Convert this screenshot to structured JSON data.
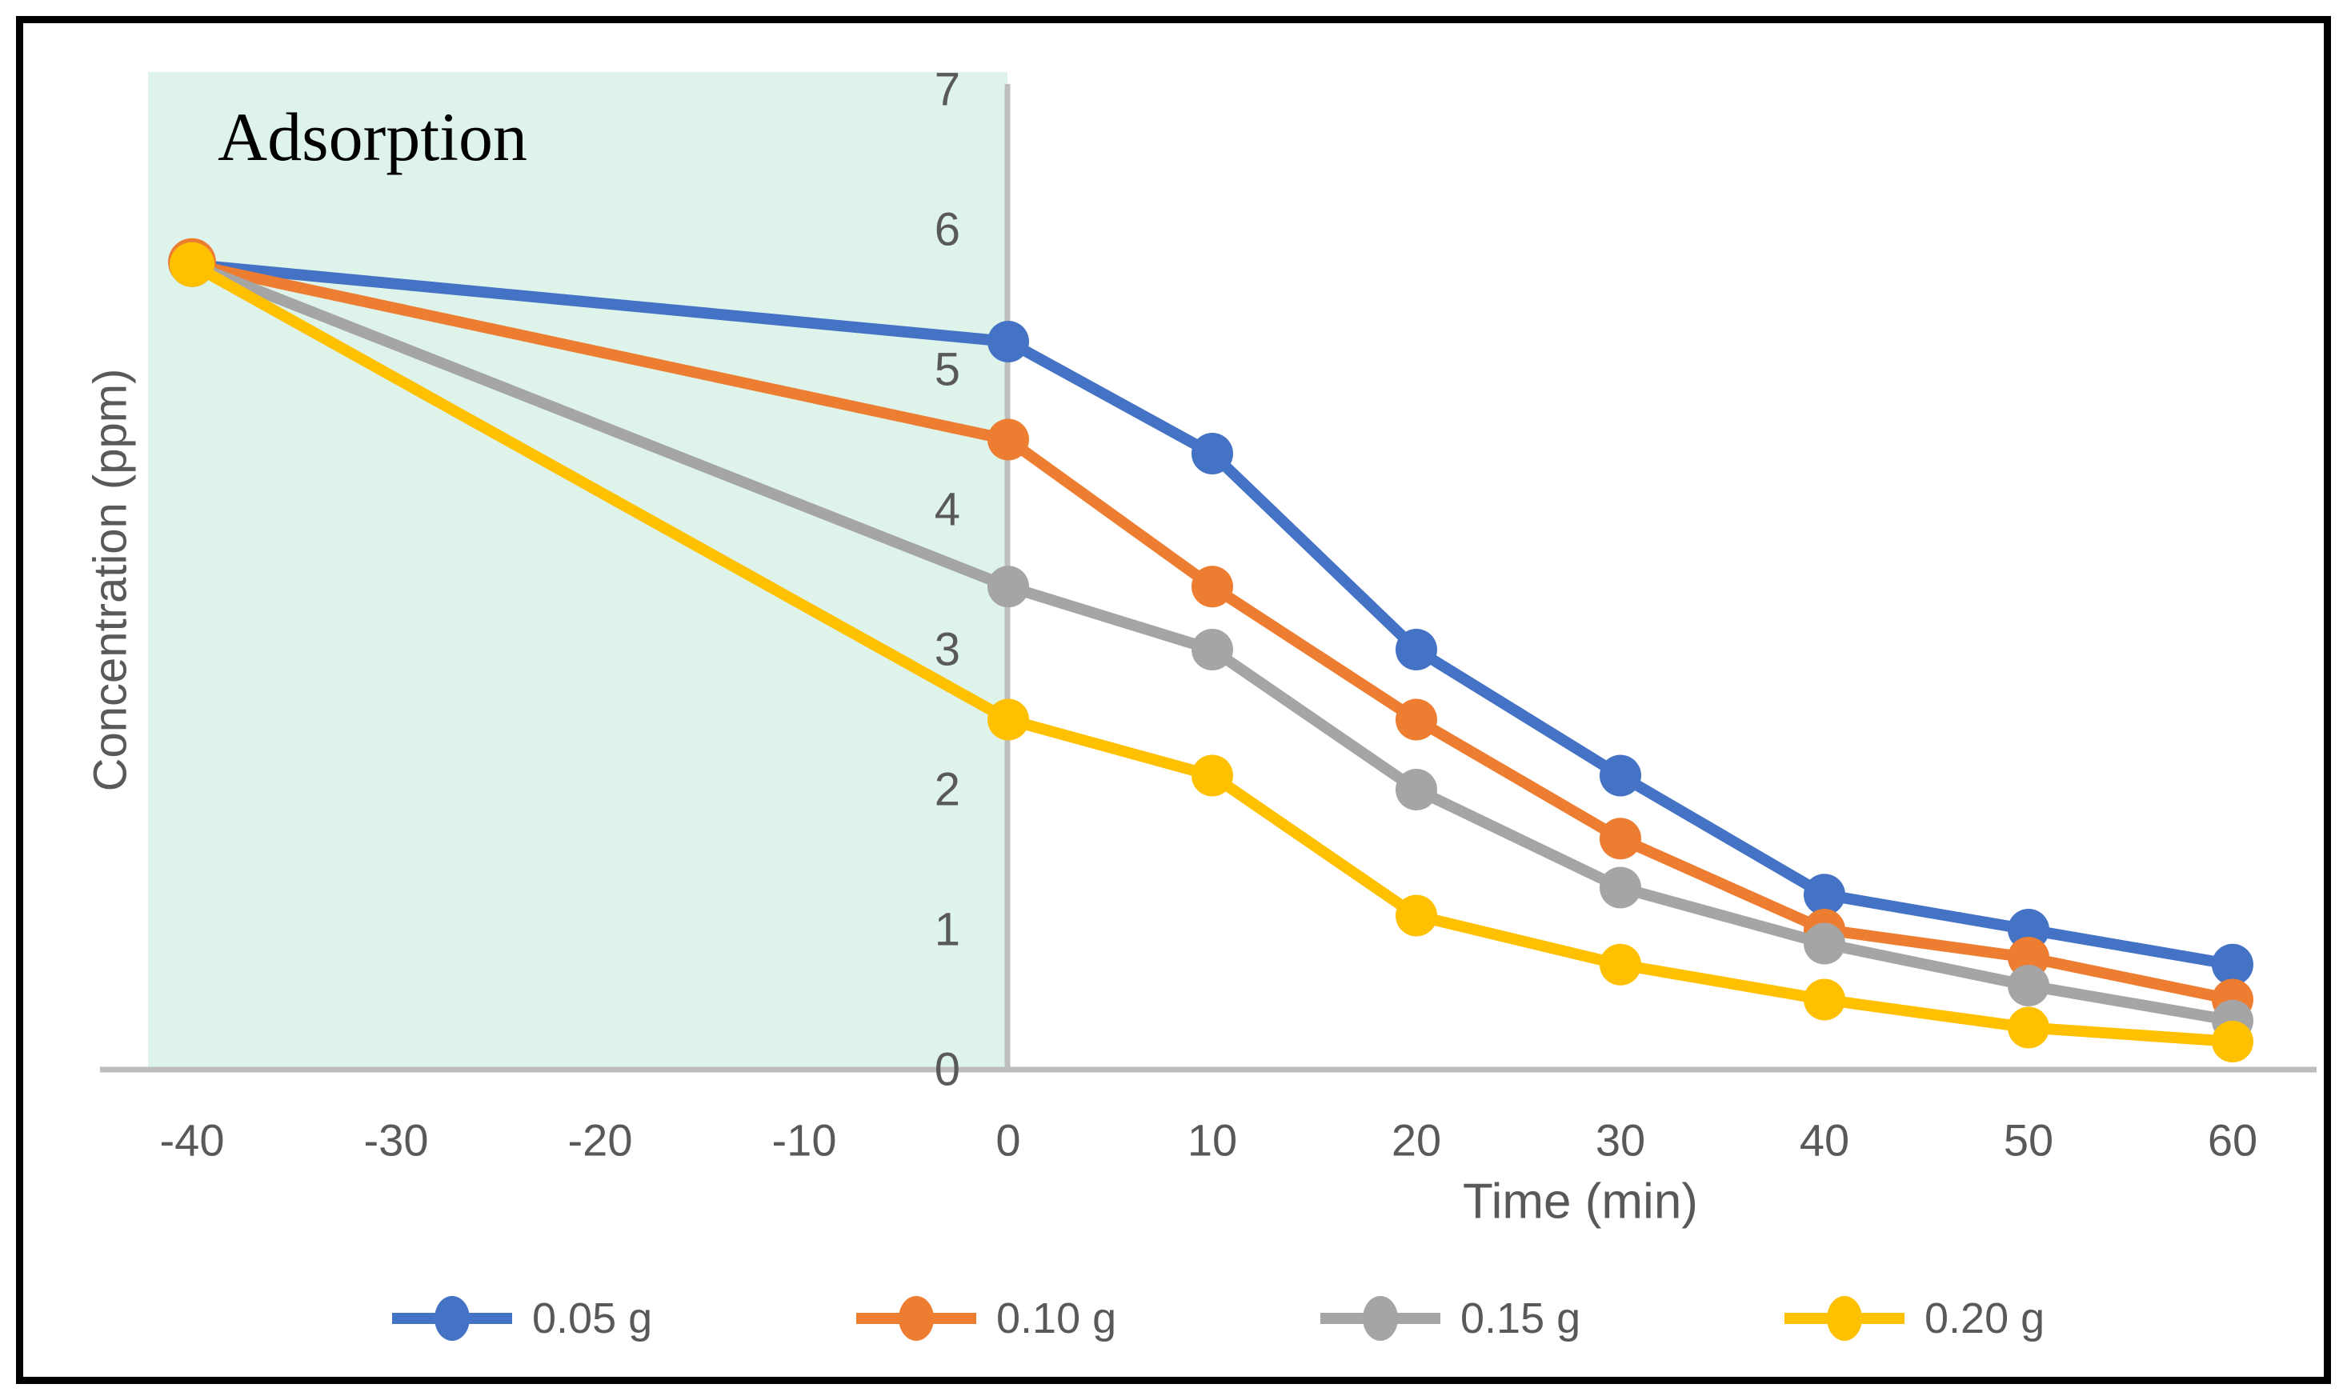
{
  "chart_data": {
    "type": "line",
    "annotation": "Adsorption",
    "xlabel": "Time (min)",
    "ylabel": "Concentration (ppm)",
    "x": [
      -40,
      0,
      10,
      20,
      30,
      40,
      50,
      60
    ],
    "x_ticks": [
      -40,
      -30,
      -20,
      -10,
      0,
      10,
      20,
      30,
      40,
      50,
      60
    ],
    "y_ticks": [
      0,
      1,
      2,
      3,
      4,
      5,
      6,
      7
    ],
    "xlim": [
      -44,
      64
    ],
    "ylim": [
      0,
      7
    ],
    "grid": false,
    "legend_position": "bottom",
    "shaded_region": {
      "label": "Adsorption",
      "x_start": -40,
      "x_end": 0
    },
    "series": [
      {
        "name": "0.05 g",
        "color": "#4472C4",
        "values": [
          5.75,
          5.2,
          4.4,
          3.0,
          2.1,
          1.25,
          1.0,
          0.75
        ]
      },
      {
        "name": "0.10 g",
        "color": "#ED7D31",
        "values": [
          5.75,
          4.5,
          3.45,
          2.5,
          1.65,
          1.0,
          0.8,
          0.5
        ]
      },
      {
        "name": "0.15 g",
        "color": "#A5A5A5",
        "values": [
          5.75,
          3.45,
          3.0,
          2.0,
          1.3,
          0.9,
          0.6,
          0.35
        ]
      },
      {
        "name": "0.20 g",
        "color": "#FFC000",
        "values": [
          5.75,
          2.5,
          2.1,
          1.1,
          0.75,
          0.5,
          0.3,
          0.2
        ]
      }
    ]
  },
  "styles": {
    "region_fill": "#DEF4EB",
    "axis_line_color": "#BDBDBD",
    "text_color": "#595959",
    "annotation_color": "#000000",
    "border_color": "#000000",
    "background": "#FFFFFF"
  }
}
